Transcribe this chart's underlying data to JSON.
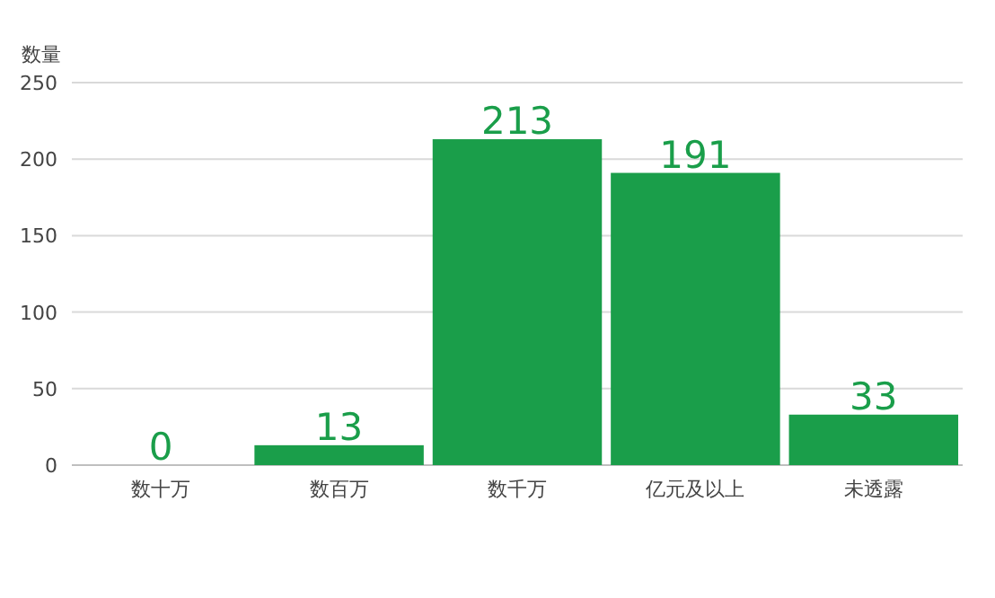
{
  "chart_data": {
    "type": "bar",
    "ylabel": "数量",
    "categories": [
      "数十万",
      "数百万",
      "数千万",
      "亿元及以上",
      "未透露"
    ],
    "values": [
      0,
      13,
      213,
      191,
      33
    ],
    "color": "#1a9e4a",
    "ylim": [
      0,
      250
    ],
    "yticks": [
      0,
      50,
      100,
      150,
      200,
      250
    ],
    "grid": "y",
    "data_labels": true
  }
}
